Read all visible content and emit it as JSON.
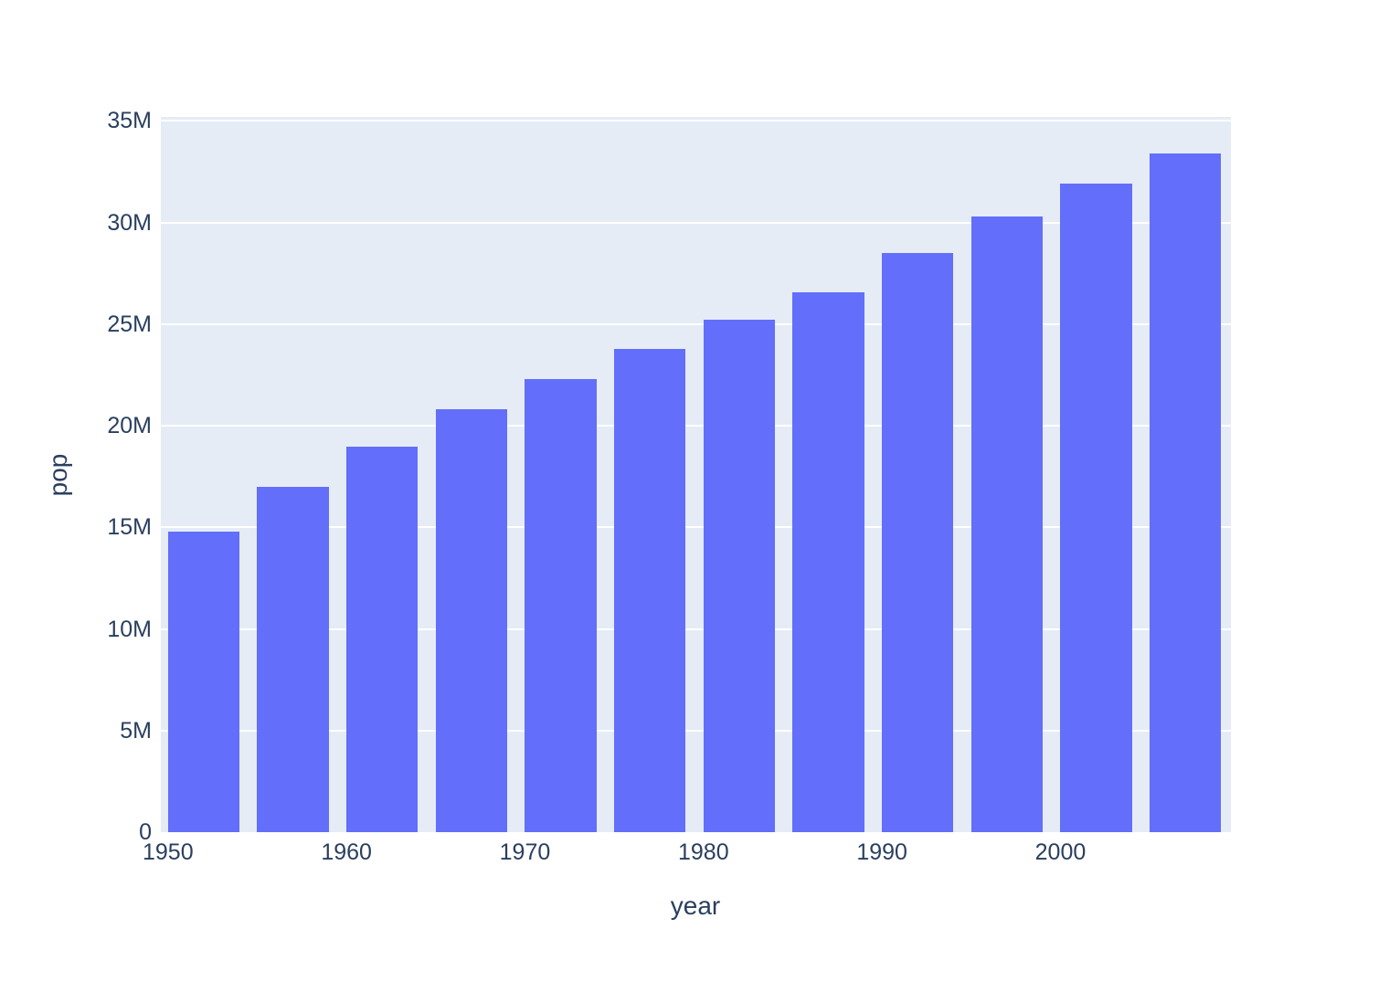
{
  "chart_data": {
    "type": "bar",
    "title": "",
    "xlabel": "year",
    "ylabel": "pop",
    "x": [
      1952,
      1957,
      1962,
      1967,
      1972,
      1977,
      1982,
      1987,
      1992,
      1997,
      2002,
      2007
    ],
    "values": [
      14785584,
      17010154,
      18985849,
      20819767,
      22284500,
      23796400,
      25201900,
      26549700,
      28523502,
      30305843,
      31902268,
      33390141
    ],
    "x_ticks": [
      1950,
      1960,
      1970,
      1980,
      1990,
      2000
    ],
    "y_ticks": [
      {
        "value": 0,
        "label": "0"
      },
      {
        "value": 5000000,
        "label": "5M"
      },
      {
        "value": 10000000,
        "label": "10M"
      },
      {
        "value": 15000000,
        "label": "15M"
      },
      {
        "value": 20000000,
        "label": "20M"
      },
      {
        "value": 25000000,
        "label": "25M"
      },
      {
        "value": 30000000,
        "label": "30M"
      },
      {
        "value": 35000000,
        "label": "35M"
      }
    ],
    "xlim": [
      1949.6,
      2009.55
    ],
    "ylim": [
      0,
      35200000
    ],
    "bar_width_fraction": 0.8,
    "x_spacing": 5,
    "grid": true,
    "legend_position": "none",
    "colors": {
      "bar": "#636EFA",
      "plot_bg": "#E5ECF6",
      "paper_bg": "#FFFFFF",
      "grid": "#FFFFFF",
      "text": "#2A3F5F"
    }
  }
}
